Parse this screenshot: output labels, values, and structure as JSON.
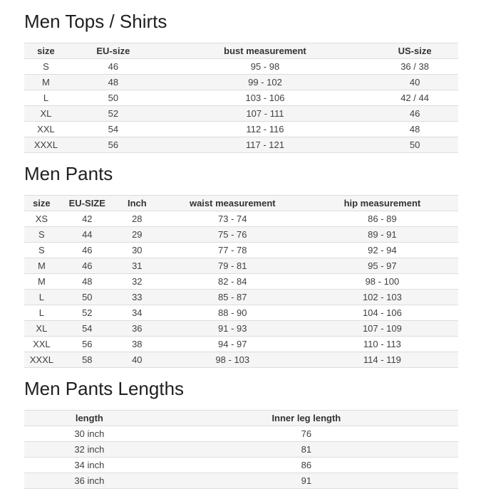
{
  "colors": {
    "background": "#ffffff",
    "title_text": "#1f1f1f",
    "header_text": "#333333",
    "body_text": "#404040",
    "header_bg": "#f5f5f5",
    "stripe_bg": "#f5f5f5",
    "row_border": "#dddddd"
  },
  "tables": [
    {
      "title": "Men Tops / Shirts",
      "columns": [
        "size",
        "EU-size",
        "bust measurement",
        "US-size"
      ],
      "col_widths": [
        "10%",
        "21%",
        "49%",
        "20%"
      ],
      "rows": [
        [
          "S",
          "46",
          "95 - 98",
          "36 / 38"
        ],
        [
          "M",
          "48",
          "99 - 102",
          "40"
        ],
        [
          "L",
          "50",
          "103 - 106",
          "42 / 44"
        ],
        [
          "XL",
          "52",
          "107 - 111",
          "46"
        ],
        [
          "XXL",
          "54",
          "112 - 116",
          "48"
        ],
        [
          "XXXL",
          "56",
          "117 - 121",
          "50"
        ]
      ]
    },
    {
      "title": "Men Pants",
      "columns": [
        "size",
        "EU-SIZE",
        "Inch",
        "waist measurement",
        "hip measurement"
      ],
      "col_widths": [
        "8%",
        "13%",
        "10%",
        "34%",
        "35%"
      ],
      "rows": [
        [
          "XS",
          "42",
          "28",
          "73 - 74",
          "86 - 89"
        ],
        [
          "S",
          "44",
          "29",
          "75 - 76",
          "89 - 91"
        ],
        [
          "S",
          "46",
          "30",
          "77 - 78",
          "92 - 94"
        ],
        [
          "M",
          "46",
          "31",
          "79 - 81",
          "95 - 97"
        ],
        [
          "M",
          "48",
          "32",
          "82 - 84",
          "98 - 100"
        ],
        [
          "L",
          "50",
          "33",
          "85 - 87",
          "102 - 103"
        ],
        [
          "L",
          "52",
          "34",
          "88 - 90",
          "104 - 106"
        ],
        [
          "XL",
          "54",
          "36",
          "91 - 93",
          "107 - 109"
        ],
        [
          "XXL",
          "56",
          "38",
          "94 - 97",
          "110 - 113"
        ],
        [
          "XXXL",
          "58",
          "40",
          "98 - 103",
          "114 - 119"
        ]
      ]
    },
    {
      "title": "Men Pants Lengths",
      "columns": [
        "length",
        "Inner leg length"
      ],
      "col_widths": [
        "30%",
        "70%"
      ],
      "rows": [
        [
          "30 inch",
          "76"
        ],
        [
          "32 inch",
          "81"
        ],
        [
          "34 inch",
          "86"
        ],
        [
          "36 inch",
          "91"
        ]
      ]
    }
  ]
}
